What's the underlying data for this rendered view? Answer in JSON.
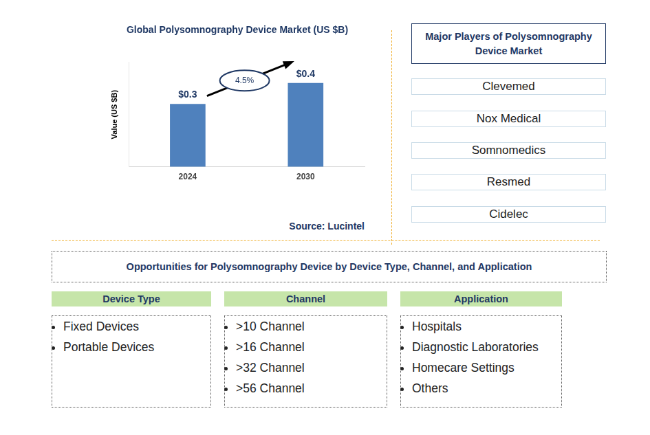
{
  "chart_data": {
    "type": "bar",
    "title": "Global Polysomnography Device Market (US $B)",
    "y_label": "Value (US $B)",
    "categories": [
      "2024",
      "2030"
    ],
    "values": [
      0.3,
      0.4
    ],
    "value_labels": [
      "$0.3",
      "$0.4"
    ],
    "data_labels": true,
    "color": "#4f81bd",
    "ylim": [
      0,
      0.5
    ],
    "grid": false,
    "tick_labels": "x",
    "annotation": "4.5%",
    "source": "Source: Lucintel"
  },
  "players": {
    "title": "Major Players of Polysomnography Device Market",
    "items": [
      "Clevemed",
      "Nox Medical",
      "Somnomedics",
      "Resmed",
      "Cidelec"
    ]
  },
  "opportunities": {
    "title": "Opportunities for Polysomnography Device by Device Type, Channel, and Application",
    "segments": [
      {
        "title": "Device Type",
        "items": [
          "Fixed Devices",
          "Portable Devices"
        ]
      },
      {
        "title": "Channel",
        "items": [
          ">10 Channel",
          ">16 Channel",
          ">32 Channel",
          ">56 Channel"
        ]
      },
      {
        "title": "Application",
        "items": [
          "Hospitals",
          "Diagnostic Laboratories",
          "Homecare Settings",
          "Others"
        ]
      }
    ]
  }
}
